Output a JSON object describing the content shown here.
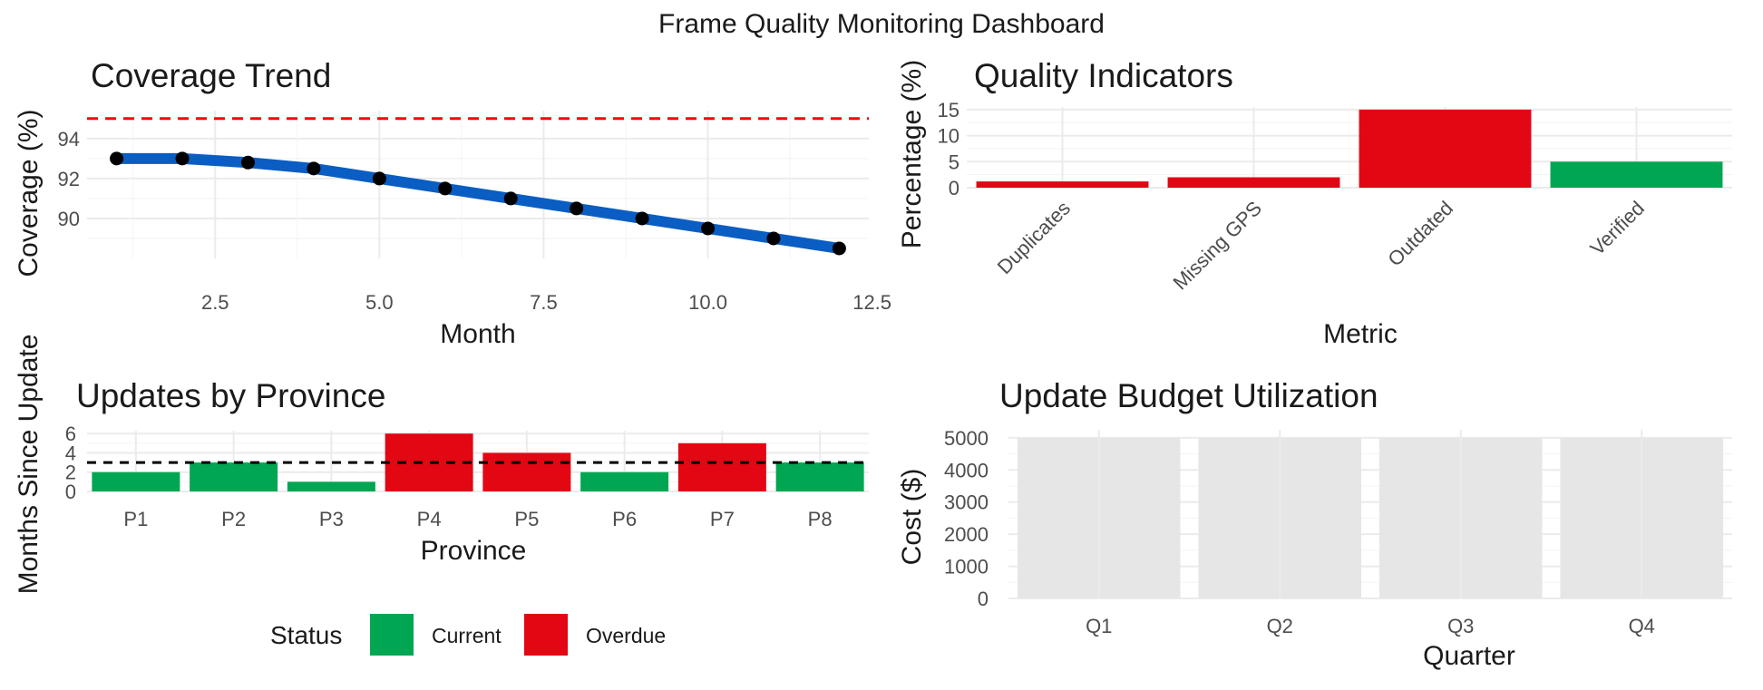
{
  "dashboard_title": "Frame Quality Monitoring Dashboard",
  "colors": {
    "line": "#0a5dc2",
    "point": "#000000",
    "target_line": "#ff0000",
    "current": "#00a651",
    "overdue": "#e30613",
    "budget_bar": "#e6e6e6"
  },
  "legend": {
    "title": "Status",
    "items": [
      {
        "label": "Current",
        "color": "#00a651"
      },
      {
        "label": "Overdue",
        "color": "#e30613"
      }
    ]
  },
  "chart_data": [
    {
      "id": "coverage",
      "type": "line",
      "title": "Coverage Trend",
      "xlabel": "Month",
      "ylabel": "Coverage (%)",
      "x": [
        1,
        2,
        3,
        4,
        5,
        6,
        7,
        8,
        9,
        10,
        11,
        12
      ],
      "y": [
        93.0,
        93.0,
        92.8,
        92.5,
        92.0,
        91.5,
        91.0,
        90.5,
        90.0,
        89.5,
        89.0,
        88.5
      ],
      "xlim": [
        0.55,
        12.45
      ],
      "ylim": [
        88.0,
        95.4
      ],
      "xticks": [
        2.5,
        5.0,
        7.5,
        10.0,
        12.5
      ],
      "xtick_labels": [
        "2.5",
        "5.0",
        "7.5",
        "10.0",
        "12.5"
      ],
      "yticks": [
        90,
        92,
        94
      ],
      "ytick_labels": [
        "90",
        "92",
        "94"
      ],
      "reference_line": 95,
      "grid": true
    },
    {
      "id": "quality",
      "type": "bar",
      "title": "Quality Indicators",
      "xlabel": "Metric",
      "ylabel": "Percentage (%)",
      "categories": [
        "Duplicates",
        "Missing GPS",
        "Outdated",
        "Verified"
      ],
      "values": [
        1.2,
        2.0,
        15.0,
        5.0
      ],
      "bar_status": [
        "Overdue",
        "Overdue",
        "Overdue",
        "Current"
      ],
      "ylim": [
        0,
        15.5
      ],
      "yticks": [
        0,
        5,
        10,
        15
      ],
      "ytick_labels": [
        "0",
        "5",
        "10",
        "15"
      ],
      "grid": true
    },
    {
      "id": "province",
      "type": "bar",
      "title": "Updates by Province",
      "xlabel": "Province",
      "ylabel": "Months Since Update",
      "categories": [
        "P1",
        "P2",
        "P3",
        "P4",
        "P5",
        "P6",
        "P7",
        "P8"
      ],
      "values": [
        2,
        3,
        1,
        6,
        4,
        2,
        5,
        3
      ],
      "bar_status": [
        "Current",
        "Current",
        "Current",
        "Overdue",
        "Overdue",
        "Current",
        "Overdue",
        "Current"
      ],
      "ylim": [
        0,
        6.3
      ],
      "yticks": [
        0,
        2,
        4,
        6
      ],
      "ytick_labels": [
        "0",
        "2",
        "4",
        "6"
      ],
      "reference_line": 3,
      "grid": true
    },
    {
      "id": "budget",
      "type": "bar",
      "title": "Update Budget Utilization",
      "xlabel": "Quarter",
      "ylabel": "Cost ($)",
      "categories": [
        "Q1",
        "Q2",
        "Q3",
        "Q4"
      ],
      "values": [
        5000,
        5000,
        5000,
        5000
      ],
      "ylim": [
        0,
        5250
      ],
      "yticks": [
        0,
        1000,
        2000,
        3000,
        4000,
        5000
      ],
      "ytick_labels": [
        "0",
        "1000",
        "2000",
        "3000",
        "4000",
        "5000"
      ],
      "grid": true
    }
  ]
}
